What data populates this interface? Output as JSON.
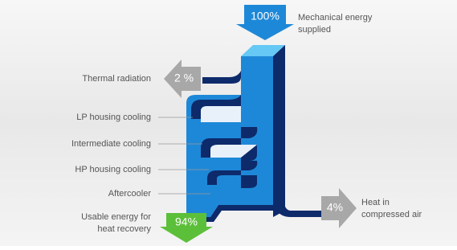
{
  "header": {
    "label": "100%",
    "caption": [
      "Mechanical energy",
      "supplied"
    ]
  },
  "outputs": [
    {
      "label": "Thermal radiation",
      "value": "2 %"
    },
    {
      "label": "LP housing cooling"
    },
    {
      "label": "Intermediate cooling"
    },
    {
      "label": "HP housing cooling"
    },
    {
      "label": "Aftercooler"
    },
    {
      "label": [
        "Usable energy for",
        "heat recovery"
      ],
      "value": "94%"
    },
    {
      "label": [
        "Heat in",
        "compressed air"
      ],
      "value": "4%"
    }
  ]
}
